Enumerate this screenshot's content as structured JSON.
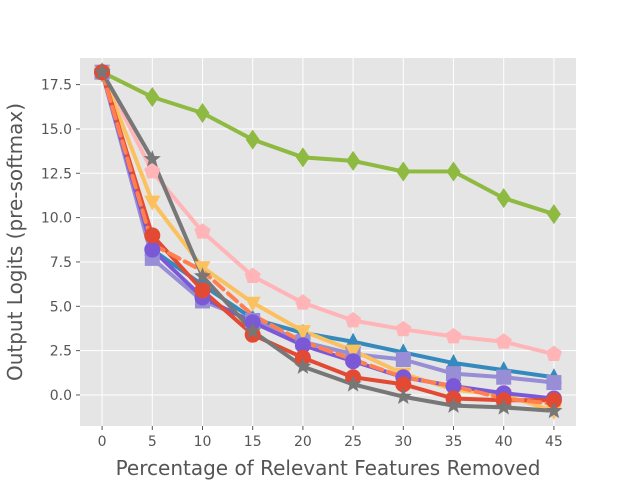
{
  "chart_data": {
    "type": "line",
    "xlabel": "Percentage of Relevant Features Removed",
    "ylabel": "Output Logits (pre-softmax)",
    "xlim": [
      -2.2,
      47.2
    ],
    "ylim": [
      -1.75,
      19.0
    ],
    "grid": true,
    "x": [
      0,
      5,
      10,
      15,
      20,
      25,
      30,
      35,
      40,
      45
    ],
    "xticks": [
      "0",
      "5",
      "10",
      "15",
      "20",
      "25",
      "30",
      "35",
      "40",
      "45"
    ],
    "yticks": [
      {
        "value": 0.0,
        "label": "0.0"
      },
      {
        "value": 2.5,
        "label": "2.5"
      },
      {
        "value": 5.0,
        "label": "5.0"
      },
      {
        "value": 7.5,
        "label": "7.5"
      },
      {
        "value": 10.0,
        "label": "10.0"
      },
      {
        "value": 12.5,
        "label": "12.5"
      },
      {
        "value": 15.0,
        "label": "15.0"
      },
      {
        "value": 17.5,
        "label": "17.5"
      }
    ],
    "series": [
      {
        "color": "#8eba42",
        "marker": "diamond",
        "dash": false,
        "values": [
          18.2,
          16.8,
          15.9,
          14.4,
          13.4,
          13.2,
          12.6,
          12.6,
          11.1,
          10.2
        ]
      },
      {
        "color": "#ffb5b8",
        "marker": "pentagon",
        "dash": false,
        "values": [
          18.2,
          12.6,
          9.2,
          6.7,
          5.2,
          4.2,
          3.7,
          3.3,
          3.0,
          2.3
        ]
      },
      {
        "color": "#348abd",
        "marker": "triangle-up",
        "dash": false,
        "values": [
          18.2,
          8.2,
          6.2,
          4.3,
          3.5,
          3.0,
          2.4,
          1.8,
          1.4,
          1.0
        ]
      },
      {
        "color": "#988ed5",
        "marker": "square",
        "dash": false,
        "values": [
          18.2,
          7.7,
          5.3,
          4.2,
          3.0,
          2.3,
          2.0,
          1.2,
          1.0,
          0.7
        ]
      },
      {
        "color": "#fbc15e",
        "marker": "triangle-down",
        "dash": false,
        "values": [
          18.2,
          10.9,
          7.2,
          5.2,
          3.6,
          2.5,
          1.2,
          0.3,
          0.0,
          -0.9
        ]
      },
      {
        "color": "#7b59d6",
        "marker": "circle",
        "dash": false,
        "values": [
          18.2,
          8.2,
          5.5,
          4.1,
          2.8,
          1.9,
          1.0,
          0.5,
          0.1,
          -0.2
        ]
      },
      {
        "color": "#e24a33",
        "marker": "circle",
        "dash": false,
        "values": [
          18.2,
          9.0,
          5.9,
          3.4,
          2.1,
          1.0,
          0.6,
          -0.2,
          -0.3,
          -0.3
        ]
      },
      {
        "color": "#ff7f50",
        "marker": "none",
        "dash": true,
        "values": [
          18.2,
          8.5,
          7.0,
          4.5,
          3.0,
          2.0,
          1.0,
          0.5,
          -0.2,
          -0.5
        ]
      },
      {
        "color": "#777777",
        "marker": "star",
        "dash": false,
        "values": [
          18.2,
          13.3,
          6.7,
          3.6,
          1.6,
          0.6,
          -0.1,
          -0.6,
          -0.7,
          -0.9
        ]
      }
    ]
  }
}
